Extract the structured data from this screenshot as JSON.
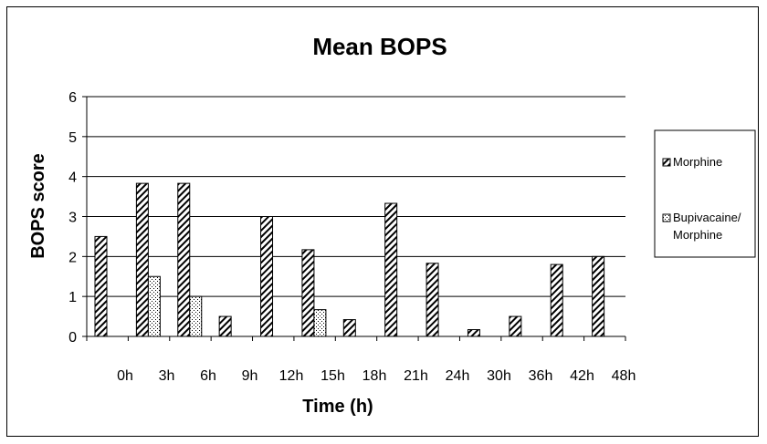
{
  "chart_data": {
    "type": "bar",
    "title": "Mean BOPS",
    "xlabel": "Time (h)",
    "ylabel": "BOPS score",
    "ylim": [
      0,
      6
    ],
    "yticks": [
      0,
      1,
      2,
      3,
      4,
      5,
      6
    ],
    "categories": [
      "0h",
      "3h",
      "6h",
      "9h",
      "12h",
      "15h",
      "18h",
      "21h",
      "24h",
      "30h",
      "36h",
      "42h",
      "48h"
    ],
    "series": [
      {
        "name": "Morphine",
        "values": [
          2.5,
          3.83,
          3.83,
          0.5,
          3.0,
          2.17,
          0.42,
          3.33,
          1.83,
          0.17,
          0.5,
          1.8,
          2.0
        ]
      },
      {
        "name": "Bupivacaine/ Morphine",
        "values": [
          0,
          1.5,
          1.0,
          0,
          0,
          0.67,
          0,
          0,
          0,
          0,
          0,
          0,
          0
        ]
      }
    ],
    "grid": true,
    "legend_position": "right",
    "colors": {
      "morphine_fill": "#ffffff",
      "morphine_hatch": "#000000",
      "bupi_fill": "#ffffff",
      "bupi_dots": "#000000"
    }
  }
}
